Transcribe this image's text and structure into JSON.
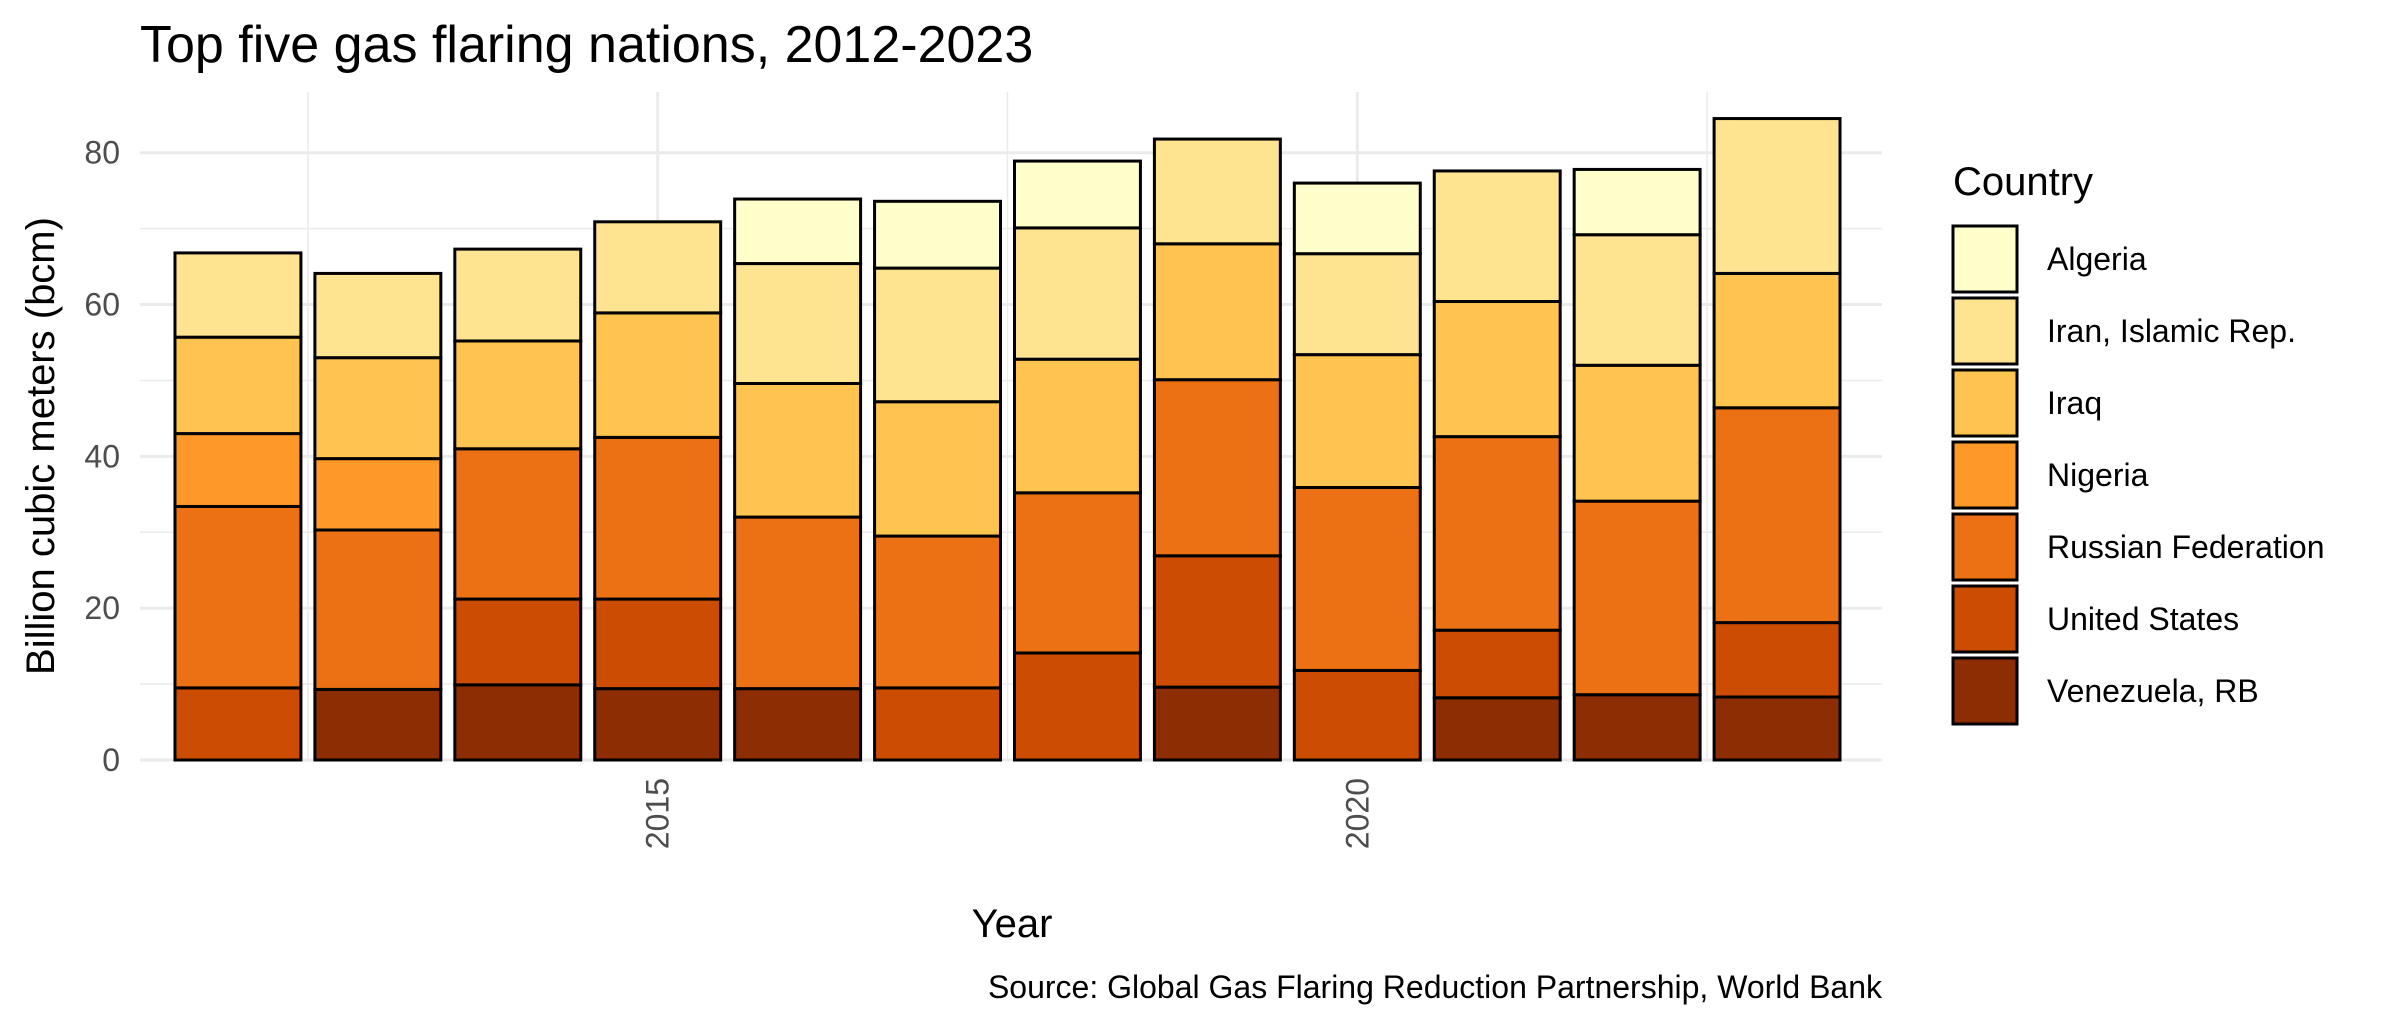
{
  "chart_data": {
    "type": "bar",
    "stacked": true,
    "title": "Top five gas flaring nations, 2012-2023",
    "xlabel": "Year",
    "ylabel": "Billion cubic meters (bcm)",
    "caption": "Source: Global Gas Flaring Reduction Partnership, World Bank",
    "legend_title": "Country",
    "legend_position": "right",
    "grid": true,
    "ylim": [
      0,
      88
    ],
    "yticks": [
      0,
      20,
      40,
      60,
      80
    ],
    "xlim": [
      2011.3,
      2023.75
    ],
    "xticks": [
      2015,
      2020
    ],
    "x": [
      2012,
      2013,
      2014,
      2015,
      2016,
      2017,
      2018,
      2019,
      2020,
      2021,
      2022,
      2023
    ],
    "series": [
      {
        "name": "Algeria",
        "color": "#ffffcc",
        "values": [
          null,
          null,
          null,
          null,
          8.5,
          8.8,
          8.8,
          null,
          9.3,
          null,
          8.6,
          null
        ]
      },
      {
        "name": "Iran, Islamic Rep.",
        "color": "#fee391",
        "values": [
          11.1,
          11.1,
          12.1,
          12.0,
          15.8,
          17.6,
          17.3,
          13.8,
          13.3,
          17.2,
          17.2,
          20.4
        ]
      },
      {
        "name": "Iraq",
        "color": "#fec44f",
        "values": [
          12.7,
          13.3,
          14.2,
          16.4,
          17.6,
          17.7,
          17.6,
          17.9,
          17.5,
          17.8,
          17.9,
          17.7
        ]
      },
      {
        "name": "Nigeria",
        "color": "#fe9929",
        "values": [
          9.6,
          9.4,
          null,
          null,
          null,
          null,
          null,
          null,
          null,
          null,
          null,
          null
        ]
      },
      {
        "name": "Russian Federation",
        "color": "#ec7014",
        "values": [
          23.9,
          21.0,
          19.8,
          21.3,
          22.6,
          20.0,
          21.1,
          23.2,
          24.1,
          25.5,
          25.5,
          28.3
        ]
      },
      {
        "name": "United States",
        "color": "#cc4c02",
        "values": [
          9.5,
          null,
          11.3,
          11.8,
          null,
          9.5,
          14.1,
          17.3,
          11.8,
          8.9,
          null,
          9.8
        ]
      },
      {
        "name": "Venezuela, RB",
        "color": "#8c2d04",
        "values": [
          null,
          9.3,
          9.9,
          9.4,
          9.4,
          null,
          null,
          9.6,
          null,
          8.2,
          8.6,
          8.3
        ]
      }
    ]
  }
}
